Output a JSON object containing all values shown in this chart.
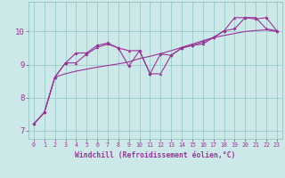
{
  "xlabel": "Windchill (Refroidissement éolien,°C)",
  "bg_color": "#cce8e8",
  "line_color": "#993399",
  "grid_color": "#99cccc",
  "xlim": [
    -0.5,
    23.5
  ],
  "ylim": [
    6.75,
    10.9
  ],
  "yticks": [
    7,
    8,
    9,
    10
  ],
  "xticks": [
    0,
    1,
    2,
    3,
    4,
    5,
    6,
    7,
    8,
    9,
    10,
    11,
    12,
    13,
    14,
    15,
    16,
    17,
    18,
    19,
    20,
    21,
    22,
    23
  ],
  "smooth_x": [
    0,
    1,
    2,
    3,
    4,
    5,
    6,
    7,
    8,
    9,
    10,
    11,
    12,
    13,
    14,
    15,
    16,
    17,
    18,
    19,
    20,
    21,
    22,
    23
  ],
  "smooth_y": [
    7.2,
    7.55,
    8.62,
    8.72,
    8.8,
    8.86,
    8.92,
    8.97,
    9.02,
    9.08,
    9.18,
    9.25,
    9.33,
    9.42,
    9.52,
    9.62,
    9.72,
    9.82,
    9.88,
    9.94,
    10.0,
    10.03,
    10.05,
    10.0
  ],
  "series1_x": [
    0,
    1,
    2,
    3,
    4,
    5,
    6,
    7,
    8,
    9,
    10,
    11,
    12,
    13,
    14,
    15,
    16,
    17,
    18,
    19,
    20,
    21,
    22,
    23
  ],
  "series1_y": [
    7.2,
    7.55,
    8.62,
    9.05,
    9.35,
    9.35,
    9.58,
    9.65,
    9.5,
    8.95,
    9.42,
    8.72,
    9.32,
    9.28,
    9.5,
    9.58,
    9.68,
    9.82,
    10.02,
    10.08,
    10.42,
    10.38,
    10.42,
    10.02
  ],
  "series2_x": [
    0,
    1,
    2,
    3,
    4,
    5,
    6,
    7,
    8,
    9,
    10,
    11,
    12,
    13,
    14,
    15,
    16,
    17,
    18,
    19,
    20,
    21,
    22,
    23
  ],
  "series2_y": [
    7.2,
    7.55,
    8.62,
    9.05,
    9.05,
    9.32,
    9.52,
    9.62,
    9.5,
    9.42,
    9.42,
    8.72,
    8.72,
    9.28,
    9.5,
    9.58,
    9.62,
    9.82,
    10.02,
    10.42,
    10.42,
    10.42,
    10.08,
    10.02
  ]
}
